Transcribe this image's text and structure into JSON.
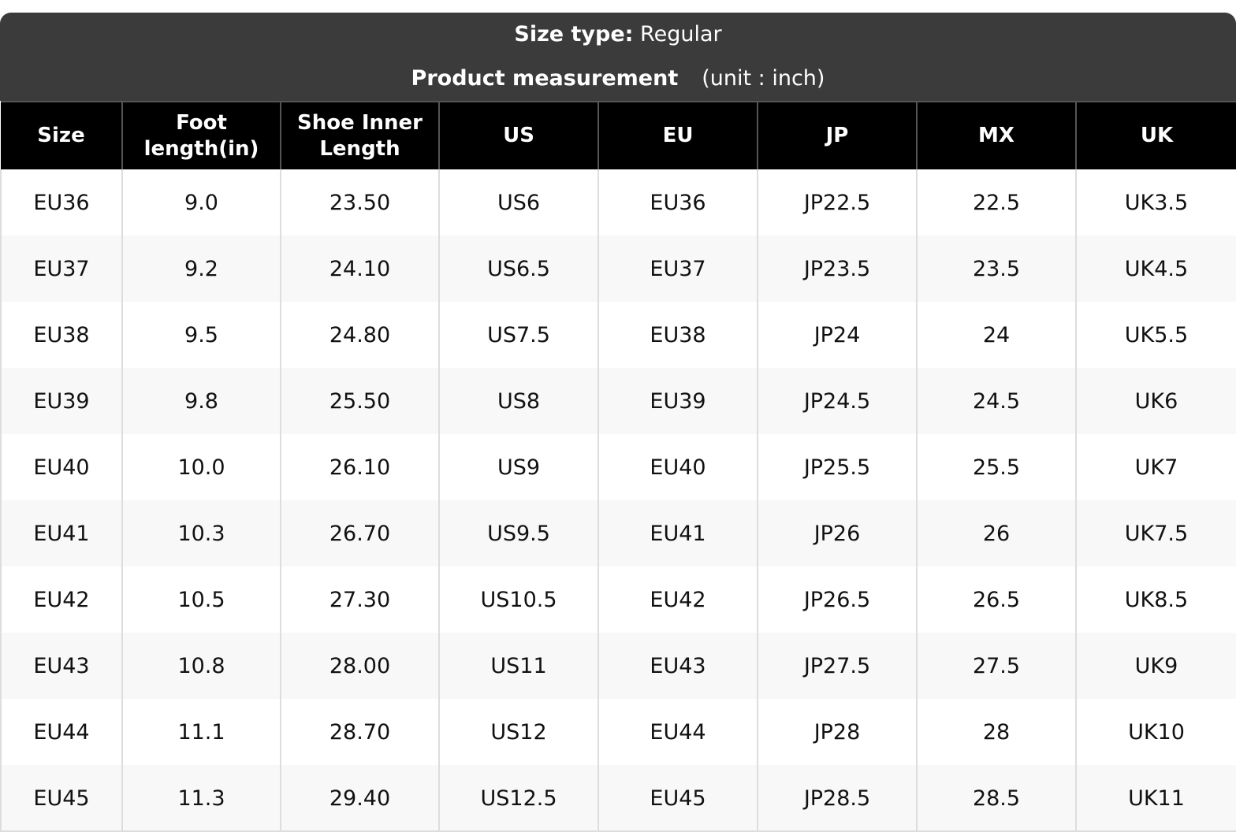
{
  "banner": {
    "size_type_label": "Size type:",
    "size_type_value": "Regular",
    "measurement_label": "Product measurement",
    "unit_note": "(unit : inch)"
  },
  "columns": [
    {
      "line1": "Size",
      "line2": ""
    },
    {
      "line1": "Foot",
      "line2": "length(in)"
    },
    {
      "line1": "Shoe Inner",
      "line2": "Length"
    },
    {
      "line1": "US",
      "line2": ""
    },
    {
      "line1": "EU",
      "line2": ""
    },
    {
      "line1": "JP",
      "line2": ""
    },
    {
      "line1": "MX",
      "line2": ""
    },
    {
      "line1": "UK",
      "line2": ""
    }
  ],
  "rows": [
    [
      "EU36",
      "9.0",
      "23.50",
      "US6",
      "EU36",
      "JP22.5",
      "22.5",
      "UK3.5"
    ],
    [
      "EU37",
      "9.2",
      "24.10",
      "US6.5",
      "EU37",
      "JP23.5",
      "23.5",
      "UK4.5"
    ],
    [
      "EU38",
      "9.5",
      "24.80",
      "US7.5",
      "EU38",
      "JP24",
      "24",
      "UK5.5"
    ],
    [
      "EU39",
      "9.8",
      "25.50",
      "US8",
      "EU39",
      "JP24.5",
      "24.5",
      "UK6"
    ],
    [
      "EU40",
      "10.0",
      "26.10",
      "US9",
      "EU40",
      "JP25.5",
      "25.5",
      "UK7"
    ],
    [
      "EU41",
      "10.3",
      "26.70",
      "US9.5",
      "EU41",
      "JP26",
      "26",
      "UK7.5"
    ],
    [
      "EU42",
      "10.5",
      "27.30",
      "US10.5",
      "EU42",
      "JP26.5",
      "26.5",
      "UK8.5"
    ],
    [
      "EU43",
      "10.8",
      "28.00",
      "US11",
      "EU43",
      "JP27.5",
      "27.5",
      "UK9"
    ],
    [
      "EU44",
      "11.1",
      "28.70",
      "US12",
      "EU44",
      "JP28",
      "28",
      "UK10"
    ],
    [
      "EU45",
      "11.3",
      "29.40",
      "US12.5",
      "EU45",
      "JP28.5",
      "28.5",
      "UK11"
    ]
  ]
}
